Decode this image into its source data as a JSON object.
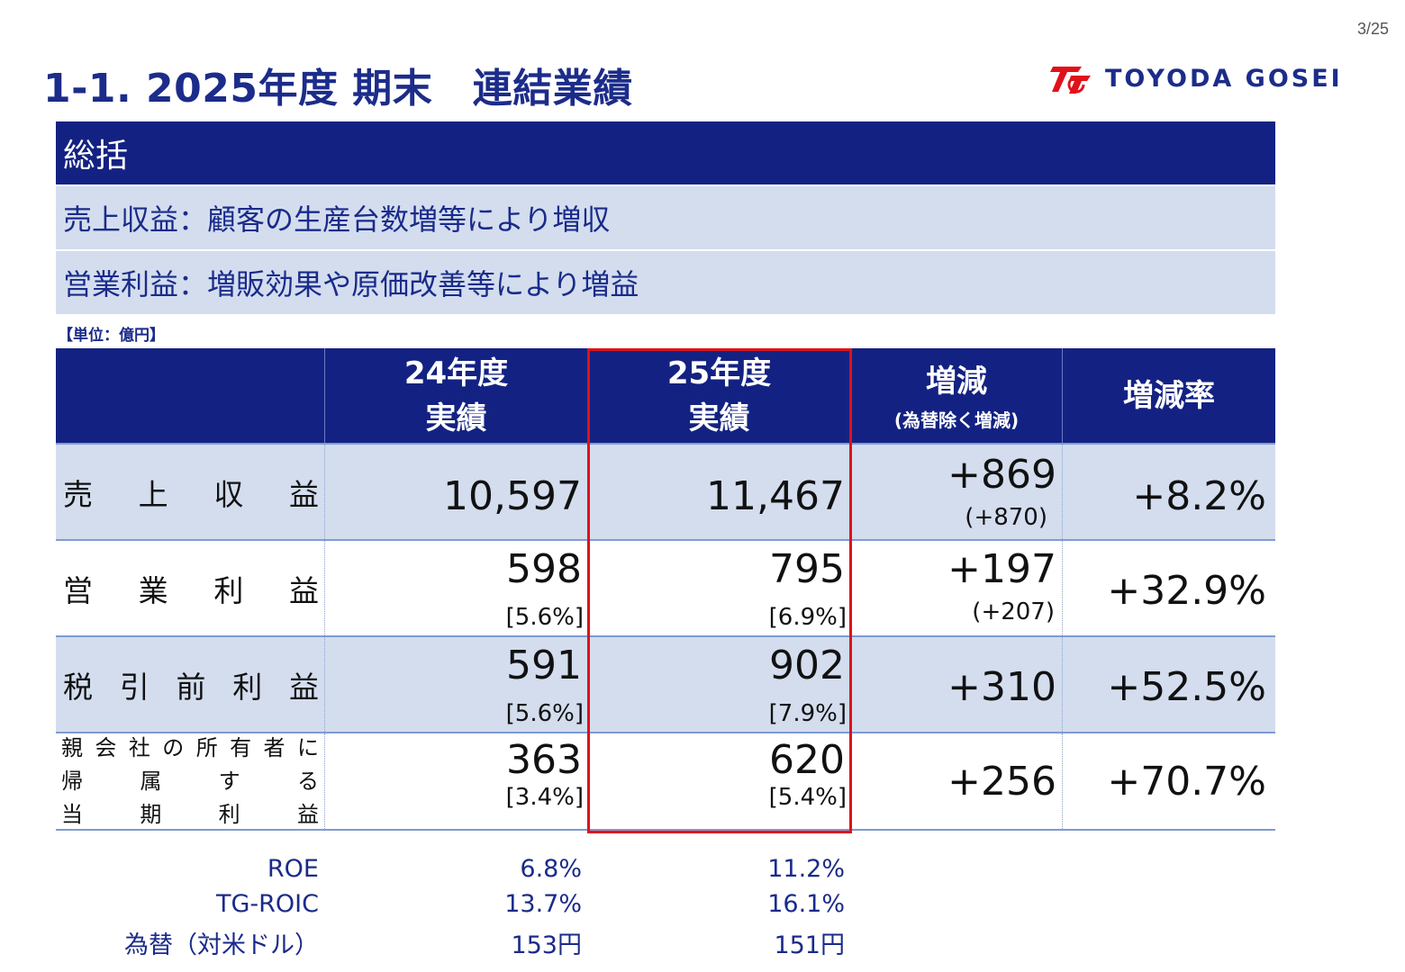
{
  "page_number": "3/25",
  "title": "1-1. 2025年度 期末　連結業績",
  "logo": {
    "name": "TOYODA GOSEI",
    "brand_color": "#e0111a"
  },
  "summary": {
    "heading": "総括",
    "lines": [
      "売上収益：顧客の生産台数増等により増収",
      "営業利益：増販効果や原価改善等により増益"
    ]
  },
  "unit": "【単位：億円】",
  "table": {
    "headers": {
      "fy24": [
        "24年度",
        "実績"
      ],
      "fy25": [
        "25年度",
        "実績"
      ],
      "change": "増減",
      "change_note": "(為替除く増減)",
      "rate": "増減率"
    },
    "rows": [
      {
        "label_chars": [
          "売",
          "上",
          "収",
          "益"
        ],
        "fy24": "10,597",
        "fy25": "11,467",
        "change": "+869",
        "change_ex_fx": "(+870)",
        "rate": "+8.2%"
      },
      {
        "label_chars": [
          "営",
          "業",
          "利",
          "益"
        ],
        "fy24": "598",
        "fy24_margin": "[5.6%]",
        "fy25": "795",
        "fy25_margin": "[6.9%]",
        "change": "+197",
        "change_ex_fx": "(+207)",
        "rate": "+32.9%"
      },
      {
        "label_chars": [
          "税",
          "引",
          "前",
          "利",
          "益"
        ],
        "fy24": "591",
        "fy24_margin": "[5.6%]",
        "fy25": "902",
        "fy25_margin": "[7.9%]",
        "change": "+310",
        "rate": "+52.5%"
      },
      {
        "label_lines": [
          [
            "親",
            "会",
            "社",
            "の",
            "所",
            "有",
            "者",
            "に"
          ],
          [
            "帰",
            "属",
            "す",
            "る"
          ],
          [
            "当",
            "期",
            "利",
            "益"
          ]
        ],
        "fy24": "363",
        "fy24_margin": "[3.4%]",
        "fy25": "620",
        "fy25_margin": "[5.4%]",
        "change": "+256",
        "rate": "+70.7%"
      }
    ]
  },
  "footer": [
    {
      "label": "ROE",
      "fy24": "6.8%",
      "fy25": "11.2%"
    },
    {
      "label": "TG-ROIC",
      "fy24": "13.7%",
      "fy25": "16.1%"
    },
    {
      "label": "為替（対米ドル）",
      "fy24": "153円",
      "fy25": "151円"
    }
  ],
  "colors": {
    "navy": "#132282",
    "light_blue": "#d3ddee",
    "text_blue": "#1a2b8a",
    "highlight_red": "#e0111a"
  }
}
